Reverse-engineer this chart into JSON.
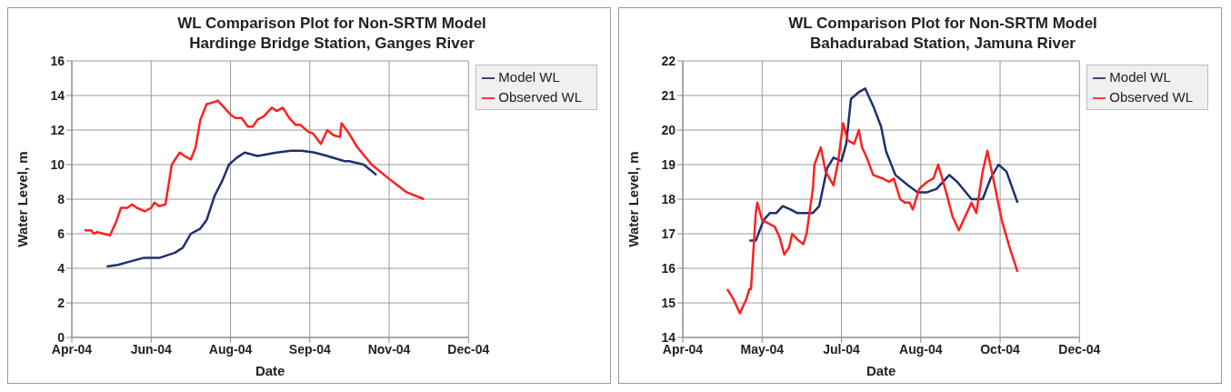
{
  "chart_data": [
    {
      "type": "line",
      "title": "WL Comparison Plot for Non-SRTM Model",
      "subtitle": "Hardinge Bridge Station, Ganges River",
      "xlabel": "Date",
      "ylabel": "Water Level, m",
      "xlim": [
        "2004-04-25",
        "2004-12-31"
      ],
      "xticks": [
        {
          "value": "2004-04-25",
          "label": "Apr-04"
        },
        {
          "value": "2004-06-14",
          "label": "Jun-04"
        },
        {
          "value": "2004-08-03",
          "label": "Aug-04"
        },
        {
          "value": "2004-09-22",
          "label": "Sep-04"
        },
        {
          "value": "2004-11-11",
          "label": "Nov-04"
        },
        {
          "value": "2004-12-31",
          "label": "Dec-04"
        }
      ],
      "ylim": [
        0,
        16
      ],
      "yticks": [
        0,
        2,
        4,
        6,
        8,
        10,
        12,
        14,
        16
      ],
      "grid": true,
      "legend": "top right",
      "marker": "none",
      "line_style": "solid",
      "series": [
        {
          "name": "Model WL",
          "color": "#1f2f6e",
          "x": [
            "2004-05-17",
            "2004-05-24",
            "2004-06-01",
            "2004-06-09",
            "2004-06-19",
            "2004-06-29",
            "2004-07-04",
            "2004-07-09",
            "2004-07-15",
            "2004-07-19",
            "2004-07-24",
            "2004-07-29",
            "2004-08-02",
            "2004-08-07",
            "2004-08-12",
            "2004-08-20",
            "2004-09-01",
            "2004-09-10",
            "2004-09-17",
            "2004-09-25",
            "2004-10-03",
            "2004-10-14",
            "2004-10-17",
            "2004-10-26",
            "2004-11-03"
          ],
          "values": [
            4.1,
            4.2,
            4.4,
            4.6,
            4.6,
            4.9,
            5.2,
            6.0,
            6.3,
            6.8,
            8.2,
            9.1,
            10.0,
            10.4,
            10.7,
            10.5,
            10.7,
            10.8,
            10.8,
            10.7,
            10.5,
            10.2,
            10.2,
            10.0,
            9.4
          ]
        },
        {
          "name": "Observed WL",
          "color": "#ff2020",
          "x": [
            "2004-05-03",
            "2004-05-07",
            "2004-05-09",
            "2004-05-11",
            "2004-05-15",
            "2004-05-19",
            "2004-05-23",
            "2004-05-26",
            "2004-05-30",
            "2004-06-02",
            "2004-06-05",
            "2004-06-10",
            "2004-06-14",
            "2004-06-16",
            "2004-06-19",
            "2004-06-23",
            "2004-06-27",
            "2004-07-02",
            "2004-07-05",
            "2004-07-09",
            "2004-07-12",
            "2004-07-15",
            "2004-07-19",
            "2004-07-23",
            "2004-07-26",
            "2004-07-31",
            "2004-08-03",
            "2004-08-06",
            "2004-08-10",
            "2004-08-14",
            "2004-08-17",
            "2004-08-20",
            "2004-08-24",
            "2004-08-29",
            "2004-09-01",
            "2004-09-05",
            "2004-09-09",
            "2004-09-13",
            "2004-09-16",
            "2004-09-21",
            "2004-09-24",
            "2004-09-29",
            "2004-10-03",
            "2004-10-07",
            "2004-10-11",
            "2004-10-12",
            "2004-10-16",
            "2004-10-22",
            "2004-10-31",
            "2004-11-12",
            "2004-11-22",
            "2004-12-03"
          ],
          "values": [
            6.2,
            6.2,
            6.0,
            6.1,
            6.0,
            5.9,
            6.7,
            7.5,
            7.5,
            7.7,
            7.5,
            7.3,
            7.5,
            7.8,
            7.6,
            7.7,
            10.0,
            10.7,
            10.5,
            10.3,
            11.0,
            12.6,
            13.5,
            13.6,
            13.7,
            13.2,
            12.9,
            12.7,
            12.7,
            12.2,
            12.2,
            12.6,
            12.8,
            13.3,
            13.1,
            13.3,
            12.7,
            12.3,
            12.3,
            11.9,
            11.8,
            11.2,
            12.0,
            11.7,
            11.6,
            12.4,
            11.9,
            11.0,
            10.0,
            9.1,
            8.4,
            8.0
          ]
        }
      ]
    },
    {
      "type": "line",
      "title": "WL Comparison Plot for Non-SRTM Model",
      "subtitle": "Bahadurabad Station, Jamuna River",
      "xlabel": "Date",
      "ylabel": "Water Level, m",
      "xlim": [
        "2004-04-01",
        "2004-12-07"
      ],
      "xticks": [
        {
          "value": "2004-04-01",
          "label": "Apr-04"
        },
        {
          "value": "2004-05-21",
          "label": "May-04"
        },
        {
          "value": "2004-07-10",
          "label": "Jul-04"
        },
        {
          "value": "2004-08-29",
          "label": "Aug-04"
        },
        {
          "value": "2004-10-18",
          "label": "Oct-04"
        },
        {
          "value": "2004-12-07",
          "label": "Dec-04"
        }
      ],
      "ylim": [
        14,
        22
      ],
      "yticks": [
        14,
        15,
        16,
        17,
        18,
        19,
        20,
        21,
        22
      ],
      "grid": true,
      "legend": "top right",
      "marker": "none",
      "line_style": "solid",
      "series": [
        {
          "name": "Model WL",
          "color": "#1f2f6e",
          "x": [
            "2004-05-13",
            "2004-05-17",
            "2004-05-22",
            "2004-05-26",
            "2004-05-30",
            "2004-06-03",
            "2004-06-08",
            "2004-06-12",
            "2004-06-22",
            "2004-06-26",
            "2004-07-01",
            "2004-07-05",
            "2004-07-10",
            "2004-07-13",
            "2004-07-16",
            "2004-07-21",
            "2004-07-25",
            "2004-07-30",
            "2004-08-04",
            "2004-08-07",
            "2004-08-13",
            "2004-08-21",
            "2004-08-27",
            "2004-09-02",
            "2004-09-08",
            "2004-09-16",
            "2004-09-21",
            "2004-09-30",
            "2004-10-07",
            "2004-10-12",
            "2004-10-17",
            "2004-10-22",
            "2004-10-29"
          ],
          "values": [
            16.8,
            16.8,
            17.4,
            17.6,
            17.6,
            17.8,
            17.7,
            17.6,
            17.6,
            17.8,
            18.9,
            19.2,
            19.1,
            19.6,
            20.9,
            21.1,
            21.2,
            20.7,
            20.1,
            19.4,
            18.7,
            18.4,
            18.2,
            18.2,
            18.3,
            18.7,
            18.5,
            18.0,
            18.0,
            18.6,
            19.0,
            18.8,
            17.9
          ]
        },
        {
          "name": "Observed WL",
          "color": "#ff2020",
          "x": [
            "2004-04-29",
            "2004-05-03",
            "2004-05-07",
            "2004-05-09",
            "2004-05-11",
            "2004-05-13",
            "2004-05-14",
            "2004-05-17",
            "2004-05-18",
            "2004-05-21",
            "2004-05-25",
            "2004-05-29",
            "2004-06-01",
            "2004-06-04",
            "2004-06-07",
            "2004-06-09",
            "2004-06-13",
            "2004-06-16",
            "2004-06-18",
            "2004-06-22",
            "2004-06-23",
            "2004-06-27",
            "2004-06-30",
            "2004-07-05",
            "2004-07-08",
            "2004-07-11",
            "2004-07-14",
            "2004-07-18",
            "2004-07-21",
            "2004-07-23",
            "2004-07-26",
            "2004-07-30",
            "2004-08-05",
            "2004-08-09",
            "2004-08-12",
            "2004-08-16",
            "2004-08-19",
            "2004-08-22",
            "2004-08-24",
            "2004-08-28",
            "2004-09-02",
            "2004-09-06",
            "2004-09-09",
            "2004-09-14",
            "2004-09-18",
            "2004-09-22",
            "2004-09-25",
            "2004-09-27",
            "2004-09-30",
            "2004-10-03",
            "2004-10-07",
            "2004-10-10",
            "2004-10-15",
            "2004-10-19",
            "2004-10-24",
            "2004-10-29"
          ],
          "values": [
            15.4,
            15.1,
            14.7,
            14.9,
            15.1,
            15.4,
            15.4,
            17.6,
            17.9,
            17.4,
            17.3,
            17.2,
            16.9,
            16.4,
            16.6,
            17.0,
            16.8,
            16.7,
            17.0,
            18.3,
            19.0,
            19.5,
            18.8,
            18.4,
            19.1,
            20.2,
            19.7,
            19.6,
            20.0,
            19.5,
            19.2,
            18.7,
            18.6,
            18.5,
            18.6,
            18.0,
            17.9,
            17.9,
            17.7,
            18.3,
            18.5,
            18.6,
            19.0,
            18.2,
            17.5,
            17.1,
            17.4,
            17.6,
            17.9,
            17.6,
            18.8,
            19.4,
            18.3,
            17.4,
            16.6,
            15.9
          ]
        }
      ]
    }
  ]
}
